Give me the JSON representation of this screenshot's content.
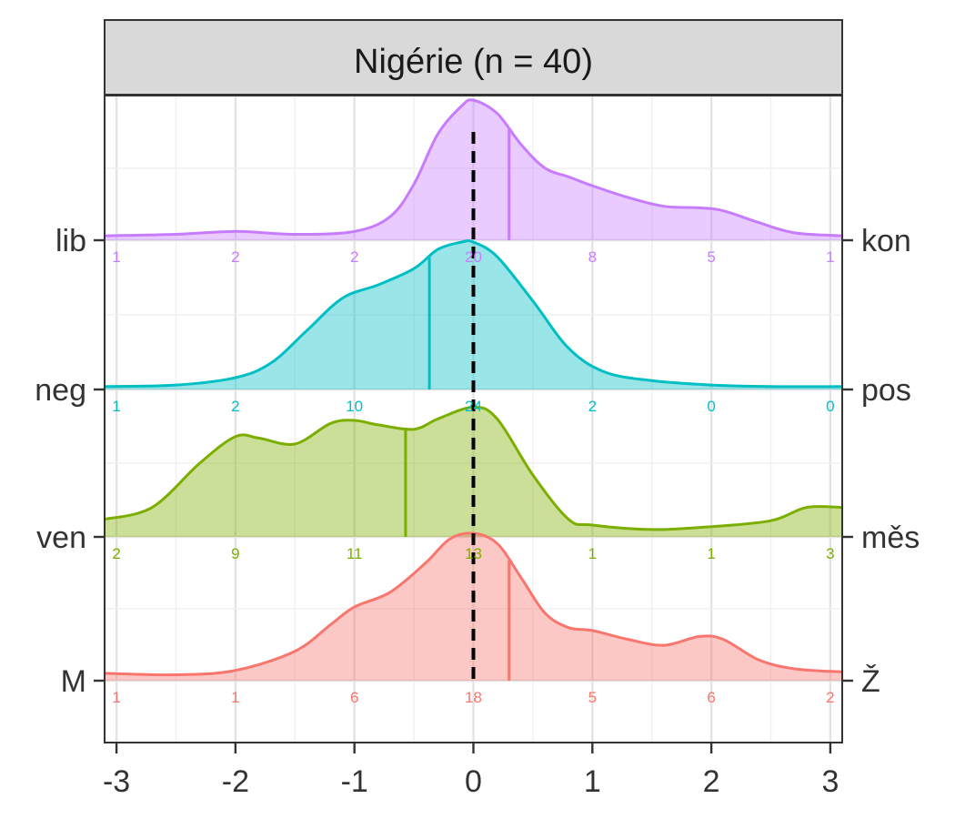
{
  "chart_data": {
    "type": "ridgeline-density",
    "title": "Nigérie (n = 40)",
    "xlim": [
      -3.1,
      3.1
    ],
    "x_ticks": [
      -3,
      -2,
      -1,
      0,
      1,
      2,
      3
    ],
    "x_tick_labels": [
      "-3",
      "-2",
      "-1",
      "0",
      "1",
      "2",
      "3"
    ],
    "reference_line_x": 0,
    "grid": true,
    "series": [
      {
        "left_label": "M",
        "right_label": "Ž",
        "color": "#F8766D",
        "mean": 0.3,
        "counts": [
          1,
          1,
          6,
          18,
          5,
          6,
          2
        ],
        "curve_x": [
          -3.1,
          -2.5,
          -2,
          -1.5,
          -1.2,
          -1,
          -0.7,
          -0.4,
          -0.2,
          0,
          0.2,
          0.4,
          0.6,
          0.8,
          1,
          1.3,
          1.6,
          1.9,
          2.1,
          2.4,
          2.7,
          3.1
        ],
        "curve_y": [
          0.05,
          0.04,
          0.07,
          0.2,
          0.38,
          0.5,
          0.6,
          0.8,
          0.96,
          1.0,
          0.93,
          0.7,
          0.46,
          0.36,
          0.34,
          0.28,
          0.24,
          0.3,
          0.28,
          0.14,
          0.08,
          0.06
        ]
      },
      {
        "left_label": "ven",
        "right_label": "měs",
        "color": "#7CAE00",
        "mean": -0.57,
        "counts": [
          2,
          9,
          11,
          13,
          1,
          1,
          3
        ],
        "curve_x": [
          -3.1,
          -2.7,
          -2.3,
          -2,
          -1.8,
          -1.5,
          -1.2,
          -1,
          -0.8,
          -0.5,
          -0.3,
          0,
          0.2,
          0.5,
          0.8,
          1,
          1.5,
          2,
          2.5,
          2.8,
          3.1
        ],
        "curve_y": [
          0.12,
          0.2,
          0.5,
          0.68,
          0.67,
          0.63,
          0.77,
          0.79,
          0.76,
          0.73,
          0.8,
          0.88,
          0.8,
          0.42,
          0.12,
          0.08,
          0.05,
          0.07,
          0.11,
          0.2,
          0.2
        ]
      },
      {
        "left_label": "neg",
        "right_label": "pos",
        "color": "#00BFC4",
        "mean": -0.37,
        "counts": [
          1,
          2,
          10,
          24,
          2,
          0,
          0
        ],
        "curve_x": [
          -3.1,
          -2.5,
          -2,
          -1.7,
          -1.4,
          -1.1,
          -0.8,
          -0.5,
          -0.3,
          -0.1,
          0,
          0.2,
          0.5,
          0.8,
          1.1,
          1.5,
          2,
          2.5,
          3.1
        ],
        "curve_y": [
          0.02,
          0.03,
          0.08,
          0.18,
          0.4,
          0.62,
          0.71,
          0.82,
          0.95,
          1.0,
          1.0,
          0.9,
          0.6,
          0.28,
          0.12,
          0.06,
          0.03,
          0.02,
          0.02
        ]
      },
      {
        "left_label": "lib",
        "right_label": "kon",
        "color": "#C77CFF",
        "mean": 0.3,
        "counts": [
          1,
          2,
          2,
          20,
          8,
          5,
          1
        ],
        "curve_x": [
          -3.1,
          -2.5,
          -2,
          -1.5,
          -1,
          -0.7,
          -0.5,
          -0.3,
          -0.1,
          0,
          0.2,
          0.4,
          0.6,
          0.8,
          1,
          1.3,
          1.6,
          1.9,
          2.1,
          2.4,
          2.7,
          3.1
        ],
        "curve_y": [
          0.03,
          0.04,
          0.06,
          0.04,
          0.06,
          0.16,
          0.38,
          0.72,
          0.91,
          0.95,
          0.86,
          0.65,
          0.49,
          0.43,
          0.37,
          0.29,
          0.23,
          0.22,
          0.2,
          0.12,
          0.05,
          0.03
        ]
      }
    ]
  }
}
